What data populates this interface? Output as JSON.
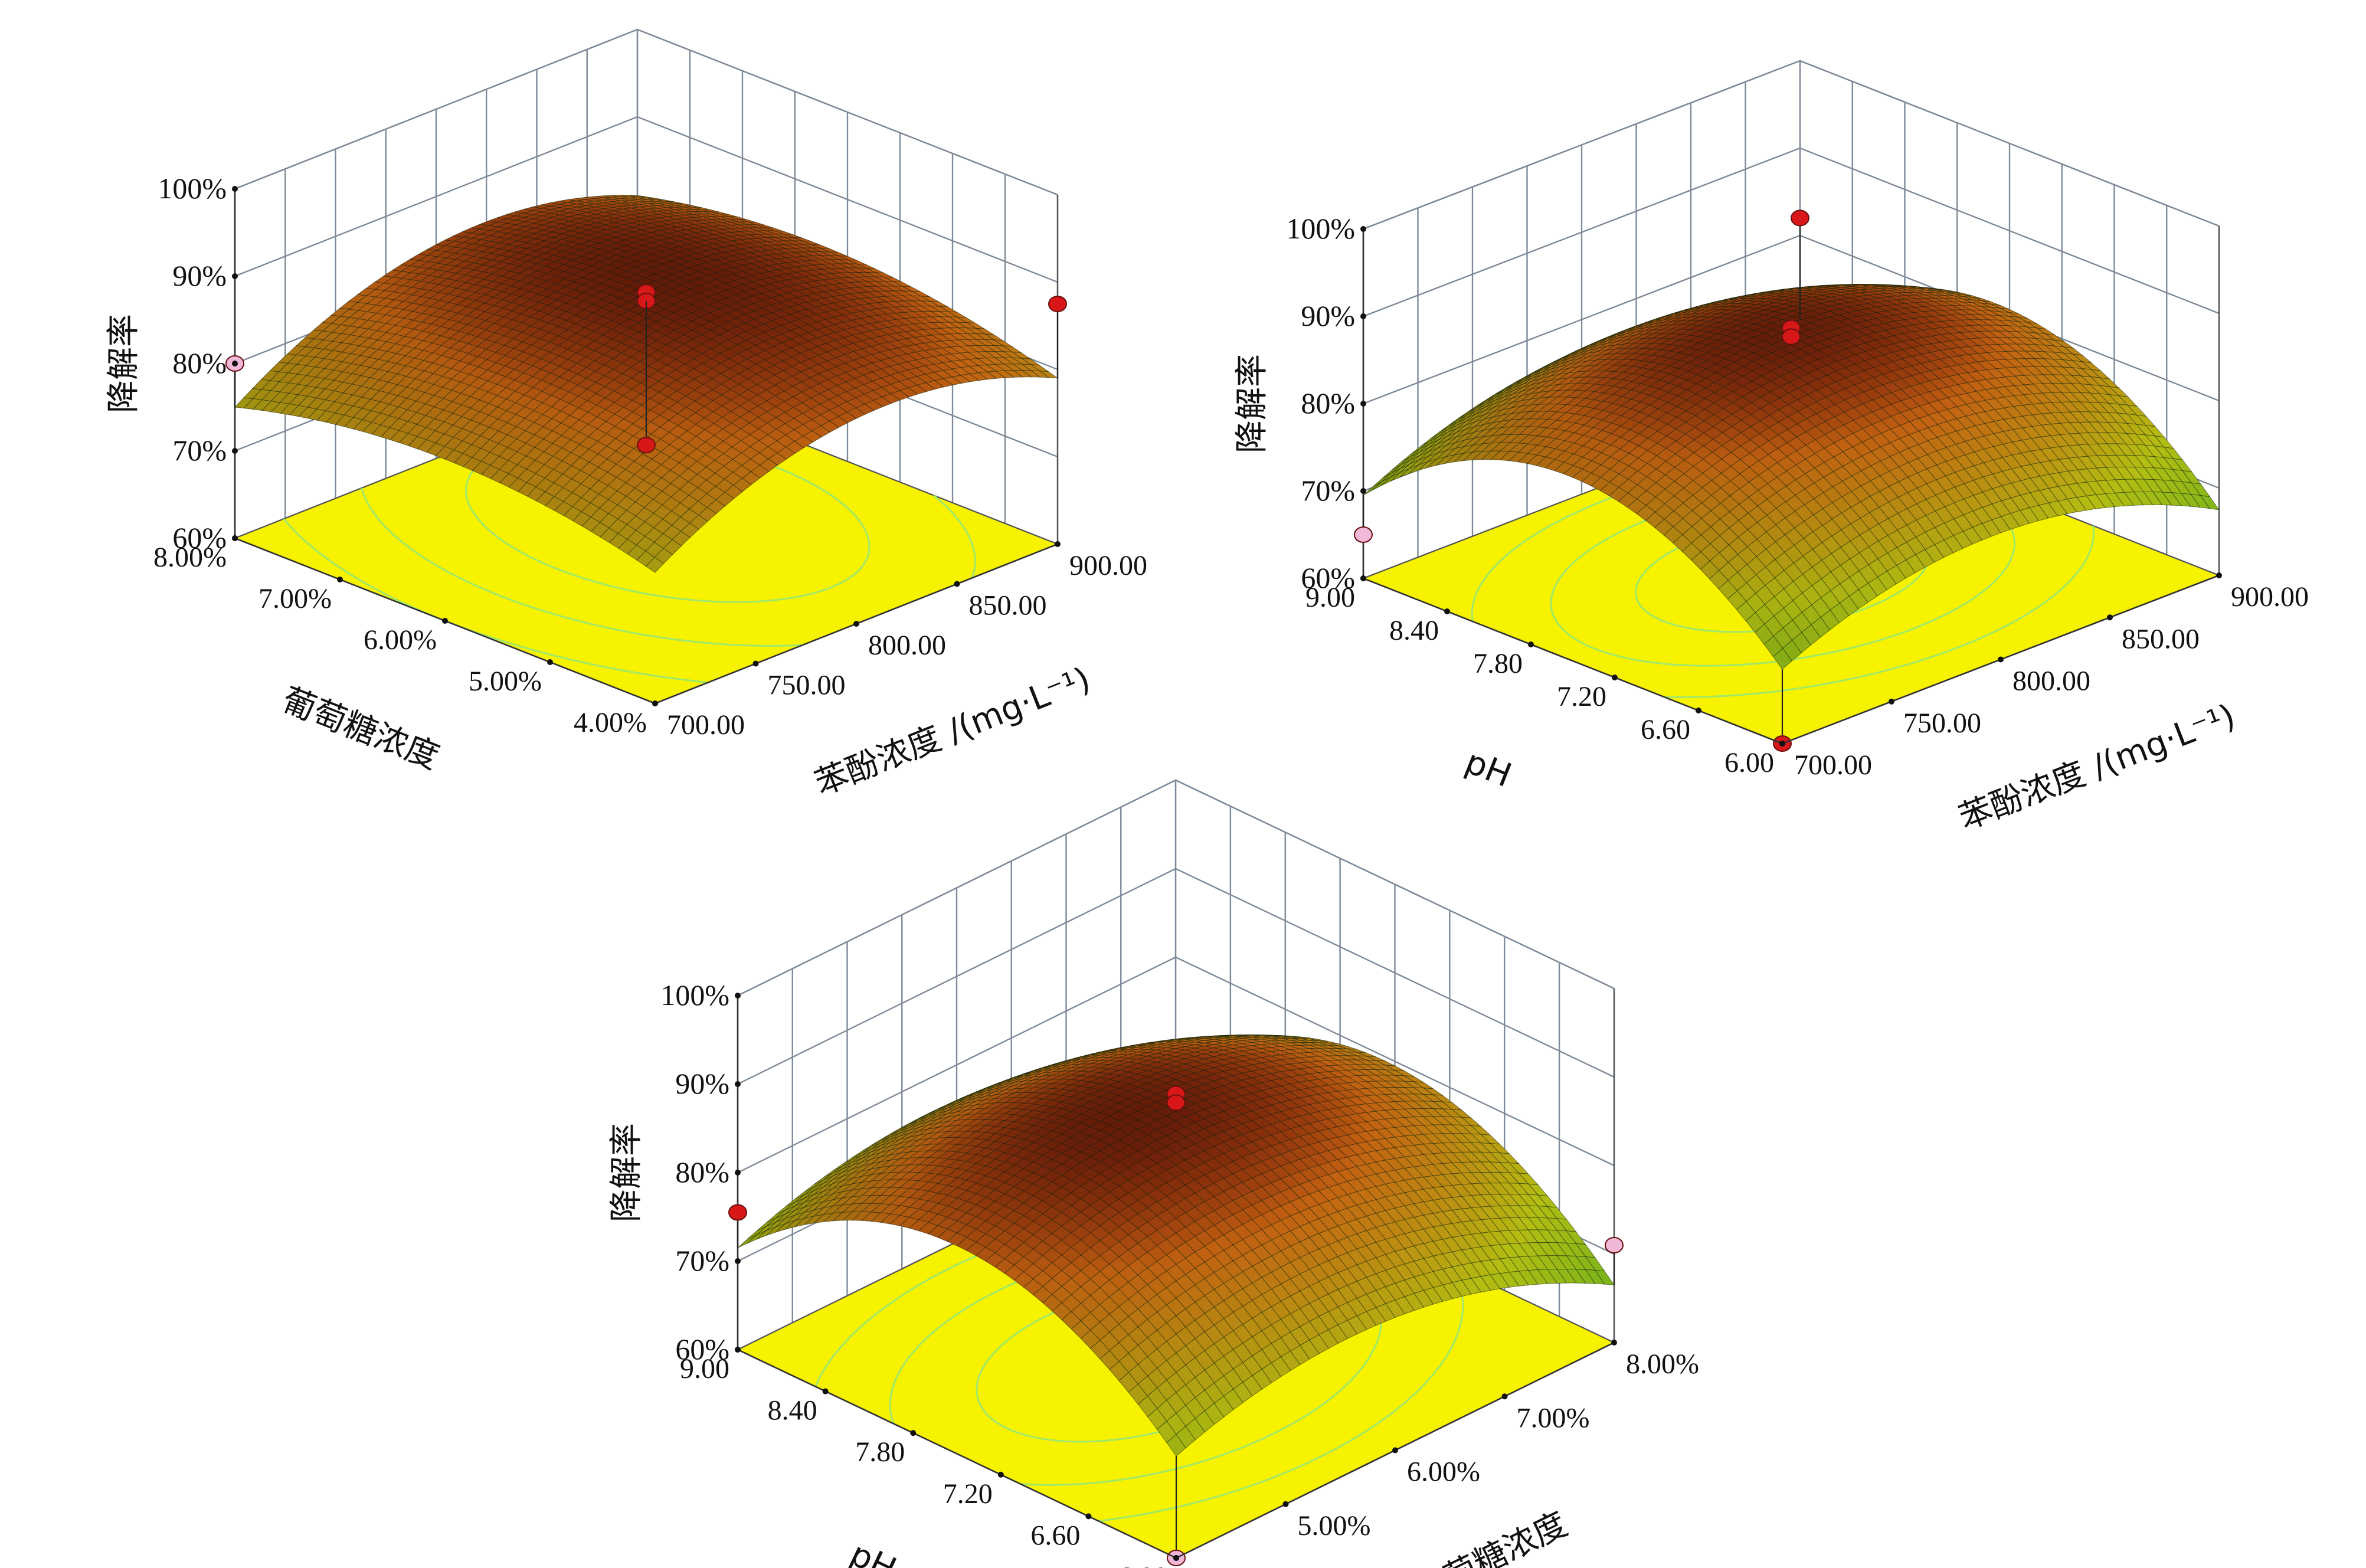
{
  "chart_data": [
    {
      "type": "surface3d",
      "title": "",
      "xlabel": "苯酚浓度 /(mg·L⁻¹)",
      "ylabel": "葡萄糖浓度",
      "zlabel": "降解率",
      "x_ticks": [
        "700.00",
        "750.00",
        "800.00",
        "850.00",
        "900.00"
      ],
      "y_ticks": [
        "4.00%",
        "5.00%",
        "6.00%",
        "7.00%",
        "8.00%"
      ],
      "z_ticks": [
        "60%",
        "70%",
        "80%",
        "90%",
        "100%"
      ],
      "xlim": [
        700,
        900
      ],
      "ylim": [
        4,
        8
      ],
      "zlim": [
        60,
        100
      ],
      "surface": {
        "c": 87.5,
        "ax": 2.5,
        "ay": 0.5,
        "bx": -6.5,
        "by": -3.5,
        "bxy": 0.5
      },
      "design_points": [
        {
          "x": 800,
          "y": 6,
          "z": 88.5,
          "color": "#d81818"
        },
        {
          "x": 800,
          "y": 6,
          "z": 87.5,
          "color": "#d81818"
        },
        {
          "x": 800,
          "y": 6,
          "z": 71,
          "color": "#d81818"
        },
        {
          "x": 900,
          "y": 4,
          "z": 87.5,
          "color": "#d81818"
        },
        {
          "x": 700,
          "y": 8,
          "z": 80,
          "color": "#f2b8d8"
        }
      ]
    },
    {
      "type": "surface3d",
      "title": "",
      "xlabel": "苯酚浓度 /(mg·L⁻¹)",
      "ylabel": "pH",
      "zlabel": "降解率",
      "x_ticks": [
        "700.00",
        "750.00",
        "800.00",
        "850.00",
        "900.00"
      ],
      "y_ticks": [
        "6.00",
        "6.60",
        "7.20",
        "7.80",
        "8.40",
        "9.00"
      ],
      "z_ticks": [
        "60%",
        "70%",
        "80%",
        "90%",
        "100%"
      ],
      "xlim": [
        700,
        900
      ],
      "ylim": [
        6,
        9
      ],
      "zlim": [
        60,
        100
      ],
      "surface": {
        "c": 87.5,
        "ax": 0.0,
        "ay": 1.0,
        "bx": -6.5,
        "by": -12.0,
        "bxy": 0.5
      },
      "design_points": [
        {
          "x": 800,
          "y": 7.5,
          "z": 88.5,
          "color": "#d81818"
        },
        {
          "x": 800,
          "y": 7.5,
          "z": 87.5,
          "color": "#d81818"
        },
        {
          "x": 700,
          "y": 6,
          "z": 60,
          "color": "#d81818"
        },
        {
          "x": 900,
          "y": 9,
          "z": 82,
          "color": "#d81818"
        },
        {
          "x": 700,
          "y": 9,
          "z": 65,
          "color": "#f2b8d8"
        }
      ]
    },
    {
      "type": "surface3d",
      "title": "",
      "xlabel": "葡萄糖浓度",
      "ylabel": "pH",
      "zlabel": "降解率",
      "x_ticks": [
        "4.00%",
        "5.00%",
        "6.00%",
        "7.00%",
        "8.00%"
      ],
      "y_ticks": [
        "6.00",
        "6.60",
        "7.20",
        "7.80",
        "8.40",
        "9.00"
      ],
      "z_ticks": [
        "60%",
        "70%",
        "80%",
        "90%",
        "100%"
      ],
      "xlim": [
        4,
        8
      ],
      "ylim": [
        6,
        9
      ],
      "zlim": [
        60,
        100
      ],
      "surface": {
        "c": 87.5,
        "ax": -2.0,
        "ay": 0.5,
        "bx": -6.0,
        "by": -12.0,
        "bxy": 0.5
      },
      "design_points": [
        {
          "x": 6,
          "y": 7.5,
          "z": 88.5,
          "color": "#d81818"
        },
        {
          "x": 6,
          "y": 7.5,
          "z": 87.5,
          "color": "#d81818"
        },
        {
          "x": 4,
          "y": 9,
          "z": 75.5,
          "color": "#d81818"
        },
        {
          "x": 8,
          "y": 6,
          "z": 71,
          "color": "#f2b8d8"
        },
        {
          "x": 4,
          "y": 6,
          "z": 60,
          "color": "#f2b8d8"
        }
      ]
    }
  ]
}
